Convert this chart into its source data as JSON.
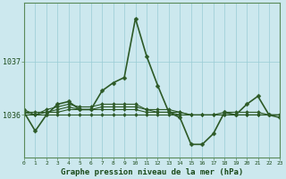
{
  "xlabel": "Graphe pression niveau de la mer (hPa)",
  "bg_color": "#cce8ee",
  "grid_color": "#99ccd5",
  "line_color": "#2d5a27",
  "x_ticks": [
    0,
    1,
    2,
    3,
    4,
    5,
    6,
    7,
    8,
    9,
    10,
    11,
    12,
    13,
    14,
    15,
    16,
    17,
    18,
    19,
    20,
    21,
    22,
    23
  ],
  "y_ticks": [
    1036,
    1037
  ],
  "ylim": [
    1035.2,
    1038.1
  ],
  "xlim": [
    0,
    23
  ],
  "main_series": [
    1036.05,
    1035.7,
    1036.0,
    1036.2,
    1036.25,
    1036.1,
    1036.1,
    1036.45,
    1036.6,
    1036.7,
    1037.8,
    1037.1,
    1036.55,
    1036.05,
    1035.95,
    1035.45,
    1035.45,
    1035.65,
    1036.05,
    1036.0,
    1036.2,
    1036.35,
    1036.0,
    1035.95
  ],
  "flat_series": [
    [
      1036.0,
      1036.0,
      1036.0,
      1036.0,
      1036.0,
      1036.0,
      1036.0,
      1036.0,
      1036.0,
      1036.0,
      1036.0,
      1036.0,
      1036.0,
      1036.0,
      1036.0,
      1036.0,
      1036.0,
      1036.0,
      1036.0,
      1036.0,
      1036.0,
      1036.0,
      1036.0,
      1036.0
    ],
    [
      1036.05,
      1036.05,
      1036.05,
      1036.05,
      1036.1,
      1036.1,
      1036.1,
      1036.1,
      1036.1,
      1036.1,
      1036.1,
      1036.05,
      1036.05,
      1036.05,
      1036.05,
      1036.0,
      1036.0,
      1036.0,
      1036.0,
      1036.0,
      1036.0,
      1036.0,
      1036.0,
      1036.0
    ],
    [
      1036.05,
      1036.0,
      1036.05,
      1036.1,
      1036.15,
      1036.1,
      1036.1,
      1036.15,
      1036.15,
      1036.15,
      1036.15,
      1036.1,
      1036.05,
      1036.05,
      1036.0,
      1036.0,
      1036.0,
      1036.0,
      1036.0,
      1036.0,
      1036.0,
      1036.0,
      1036.0,
      1036.0
    ],
    [
      1036.1,
      1036.0,
      1036.1,
      1036.15,
      1036.2,
      1036.15,
      1036.15,
      1036.2,
      1036.2,
      1036.2,
      1036.2,
      1036.1,
      1036.1,
      1036.1,
      1036.05,
      1036.0,
      1036.0,
      1036.0,
      1036.05,
      1036.05,
      1036.05,
      1036.05,
      1036.0,
      1036.0
    ]
  ],
  "marker": "D",
  "marker_size": 2.0
}
